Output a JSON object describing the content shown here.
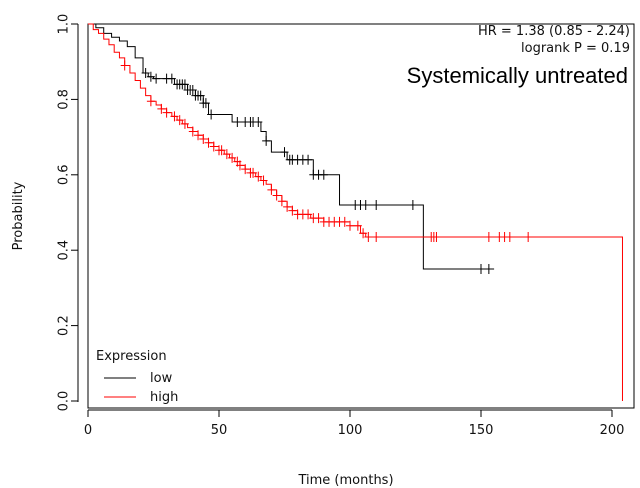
{
  "chart_data": {
    "type": "line",
    "subtype": "kaplan-meier",
    "xlabel": "Time (months)",
    "ylabel": "Probability",
    "xlim": [
      0,
      205
    ],
    "ylim": [
      0,
      1
    ],
    "x_ticks": [
      0,
      50,
      100,
      150,
      200
    ],
    "y_ticks": [
      0.0,
      0.2,
      0.4,
      0.6,
      0.8,
      1.0
    ],
    "x_tick_labels": [
      "0",
      "50",
      "100",
      "150",
      "200"
    ],
    "y_tick_labels": [
      "0.0",
      "0.2",
      "0.4",
      "0.6",
      "0.8",
      "1.0"
    ],
    "grid": false,
    "annotations": {
      "hr": "HR = 1.38 (0.85 - 2.24)",
      "logrank": "logrank P = 0.19",
      "subgroup": "Systemically untreated"
    },
    "legend": {
      "title": "Expression",
      "placement": "bottom-left",
      "entries": [
        "low",
        "high"
      ]
    },
    "series": [
      {
        "name": "low",
        "color": "#000000",
        "steps": [
          [
            0,
            1.0
          ],
          [
            3,
            0.99
          ],
          [
            6,
            0.975
          ],
          [
            9,
            0.965
          ],
          [
            12,
            0.955
          ],
          [
            15,
            0.94
          ],
          [
            18,
            0.91
          ],
          [
            21,
            0.87
          ],
          [
            23,
            0.86
          ],
          [
            25,
            0.855
          ],
          [
            33,
            0.84
          ],
          [
            38,
            0.825
          ],
          [
            41,
            0.81
          ],
          [
            44,
            0.79
          ],
          [
            46,
            0.76
          ],
          [
            55,
            0.74
          ],
          [
            66,
            0.715
          ],
          [
            68,
            0.69
          ],
          [
            70,
            0.66
          ],
          [
            76,
            0.64
          ],
          [
            86,
            0.6
          ],
          [
            96,
            0.52
          ],
          [
            128,
            0.35
          ],
          [
            155,
            0.35
          ]
        ],
        "censor_x": [
          22,
          24,
          26,
          30,
          32,
          34,
          35,
          36,
          37,
          38,
          39,
          40,
          41,
          42,
          43,
          44,
          45,
          47,
          57,
          60,
          62,
          63,
          65,
          68,
          75,
          77,
          78,
          80,
          82,
          84,
          86,
          88,
          90,
          102,
          104,
          106,
          110,
          124,
          150,
          153
        ]
      },
      {
        "name": "high",
        "color": "#ff0000",
        "steps": [
          [
            0,
            1.0
          ],
          [
            2,
            0.985
          ],
          [
            4,
            0.975
          ],
          [
            6,
            0.96
          ],
          [
            8,
            0.945
          ],
          [
            10,
            0.925
          ],
          [
            12,
            0.91
          ],
          [
            14,
            0.89
          ],
          [
            16,
            0.87
          ],
          [
            18,
            0.85
          ],
          [
            20,
            0.83
          ],
          [
            22,
            0.81
          ],
          [
            24,
            0.795
          ],
          [
            26,
            0.785
          ],
          [
            28,
            0.775
          ],
          [
            30,
            0.765
          ],
          [
            32,
            0.755
          ],
          [
            34,
            0.745
          ],
          [
            36,
            0.735
          ],
          [
            38,
            0.725
          ],
          [
            40,
            0.715
          ],
          [
            42,
            0.705
          ],
          [
            44,
            0.695
          ],
          [
            46,
            0.685
          ],
          [
            48,
            0.675
          ],
          [
            50,
            0.665
          ],
          [
            52,
            0.655
          ],
          [
            54,
            0.645
          ],
          [
            56,
            0.635
          ],
          [
            58,
            0.625
          ],
          [
            60,
            0.615
          ],
          [
            62,
            0.605
          ],
          [
            64,
            0.595
          ],
          [
            66,
            0.585
          ],
          [
            68,
            0.575
          ],
          [
            70,
            0.56
          ],
          [
            72,
            0.545
          ],
          [
            74,
            0.53
          ],
          [
            76,
            0.515
          ],
          [
            78,
            0.505
          ],
          [
            80,
            0.495
          ],
          [
            85,
            0.485
          ],
          [
            90,
            0.475
          ],
          [
            100,
            0.465
          ],
          [
            104,
            0.445
          ],
          [
            106,
            0.435
          ],
          [
            204,
            0.435
          ],
          [
            204,
            0.0
          ]
        ],
        "censor_x": [
          14,
          24,
          28,
          30,
          33,
          35,
          37,
          40,
          42,
          44,
          46,
          48,
          50,
          51,
          53,
          55,
          57,
          58,
          60,
          62,
          63,
          65,
          67,
          70,
          72,
          74,
          76,
          78,
          80,
          82,
          84,
          86,
          88,
          90,
          92,
          94,
          96,
          98,
          100,
          103,
          105,
          107,
          110,
          131,
          132,
          133,
          153,
          157,
          159,
          161,
          168
        ]
      }
    ]
  }
}
